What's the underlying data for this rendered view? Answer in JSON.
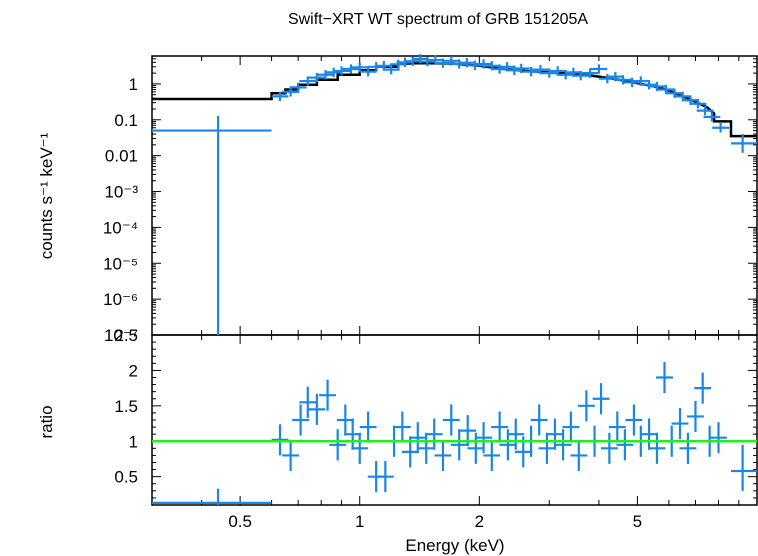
{
  "chart_data": [
    {
      "type": "scatter",
      "title": "Swift−XRT WT spectrum of GRB 151205A",
      "xlabel": "",
      "ylabel": "counts s⁻¹ keV⁻¹",
      "x_scale": "log",
      "y_scale": "log",
      "xlim": [
        0.3,
        10
      ],
      "ylim": [
        1e-07,
        6
      ],
      "ytick_labels": [
        "1",
        "0.1",
        "0.01",
        "10⁻³",
        "10⁻⁴",
        "10⁻⁵",
        "10⁻⁶",
        "10⁻⁷"
      ],
      "data_color": "#1a86e8",
      "model_color": "#000000",
      "series": [
        {
          "points": [
            {
              "x": 0.44,
              "xlo": 0.3,
              "xhi": 0.6,
              "y": 0.05,
              "ylo": 1e-07,
              "yhi": 0.13
            },
            {
              "x": 0.63,
              "y": 0.45
            },
            {
              "x": 0.67,
              "y": 0.6
            },
            {
              "x": 0.7,
              "y": 0.8
            },
            {
              "x": 0.74,
              "y": 1.2
            },
            {
              "x": 0.78,
              "y": 1.5
            },
            {
              "x": 0.82,
              "y": 1.8
            },
            {
              "x": 0.86,
              "y": 2.1
            },
            {
              "x": 0.9,
              "y": 2.3
            },
            {
              "x": 0.95,
              "y": 2.6
            },
            {
              "x": 1.0,
              "y": 2.9
            },
            {
              "x": 1.05,
              "y": 2.2
            },
            {
              "x": 1.1,
              "y": 3.0
            },
            {
              "x": 1.15,
              "y": 3.2
            },
            {
              "x": 1.2,
              "y": 2.5
            },
            {
              "x": 1.25,
              "y": 3.5
            },
            {
              "x": 1.3,
              "y": 4.0
            },
            {
              "x": 1.36,
              "y": 4.3
            },
            {
              "x": 1.42,
              "y": 5.0
            },
            {
              "x": 1.48,
              "y": 4.2
            },
            {
              "x": 1.55,
              "y": 4.6
            },
            {
              "x": 1.62,
              "y": 3.8
            },
            {
              "x": 1.7,
              "y": 4.4
            },
            {
              "x": 1.78,
              "y": 3.6
            },
            {
              "x": 1.86,
              "y": 3.9
            },
            {
              "x": 1.95,
              "y": 3.3
            },
            {
              "x": 2.05,
              "y": 3.6
            },
            {
              "x": 2.15,
              "y": 3.2
            },
            {
              "x": 2.25,
              "y": 2.6
            },
            {
              "x": 2.35,
              "y": 3.0
            },
            {
              "x": 2.45,
              "y": 2.4
            },
            {
              "x": 2.55,
              "y": 2.7
            },
            {
              "x": 2.7,
              "y": 2.2
            },
            {
              "x": 2.85,
              "y": 2.5
            },
            {
              "x": 3.0,
              "y": 2.0
            },
            {
              "x": 3.15,
              "y": 2.3
            },
            {
              "x": 3.3,
              "y": 1.8
            },
            {
              "x": 3.45,
              "y": 2.1
            },
            {
              "x": 3.6,
              "y": 1.7
            },
            {
              "x": 3.8,
              "y": 2.0
            },
            {
              "x": 4.0,
              "y": 2.6
            },
            {
              "x": 4.2,
              "y": 1.4
            },
            {
              "x": 4.4,
              "y": 1.6
            },
            {
              "x": 4.6,
              "y": 1.3
            },
            {
              "x": 4.85,
              "y": 1.1
            },
            {
              "x": 5.1,
              "y": 1.2
            },
            {
              "x": 5.35,
              "y": 0.95
            },
            {
              "x": 5.6,
              "y": 0.85
            },
            {
              "x": 5.9,
              "y": 0.7
            },
            {
              "x": 6.2,
              "y": 0.55
            },
            {
              "x": 6.5,
              "y": 0.45
            },
            {
              "x": 6.8,
              "y": 0.35
            },
            {
              "x": 7.1,
              "y": 0.28
            },
            {
              "x": 7.4,
              "y": 0.18
            },
            {
              "x": 7.7,
              "y": 0.12
            },
            {
              "x": 8.1,
              "y": 0.06
            },
            {
              "x": 9.2,
              "xlo": 8.6,
              "xhi": 10.0,
              "y": 0.022,
              "ylo": 0.012,
              "yhi": 0.04
            }
          ]
        },
        {
          "model_steps": [
            {
              "x": 0.3,
              "y": 0.38
            },
            {
              "x": 0.6,
              "y": 0.38
            },
            {
              "x": 0.6,
              "y": 0.55
            },
            {
              "x": 0.65,
              "y": 0.55
            },
            {
              "x": 0.65,
              "y": 0.7
            },
            {
              "x": 0.7,
              "y": 0.7
            },
            {
              "x": 0.7,
              "y": 0.95
            },
            {
              "x": 0.78,
              "y": 0.95
            },
            {
              "x": 0.78,
              "y": 1.3
            },
            {
              "x": 0.88,
              "y": 1.3
            },
            {
              "x": 0.88,
              "y": 1.8
            },
            {
              "x": 1.0,
              "y": 1.8
            },
            {
              "x": 1.0,
              "y": 2.4
            },
            {
              "x": 1.1,
              "y": 2.4
            },
            {
              "x": 1.1,
              "y": 3.0
            },
            {
              "x": 1.25,
              "y": 3.0
            },
            {
              "x": 1.25,
              "y": 3.6
            },
            {
              "x": 1.4,
              "y": 3.8
            },
            {
              "x": 1.7,
              "y": 3.7
            },
            {
              "x": 2.0,
              "y": 3.2
            },
            {
              "x": 2.3,
              "y": 2.6
            },
            {
              "x": 2.6,
              "y": 2.3
            },
            {
              "x": 3.0,
              "y": 2.1
            },
            {
              "x": 3.5,
              "y": 1.9
            },
            {
              "x": 4.0,
              "y": 1.6
            },
            {
              "x": 4.5,
              "y": 1.3
            },
            {
              "x": 5.0,
              "y": 1.05
            },
            {
              "x": 5.5,
              "y": 0.85
            },
            {
              "x": 6.0,
              "y": 0.65
            },
            {
              "x": 6.5,
              "y": 0.45
            },
            {
              "x": 7.0,
              "y": 0.32
            },
            {
              "x": 7.5,
              "y": 0.22
            },
            {
              "x": 7.8,
              "y": 0.15
            },
            {
              "x": 7.8,
              "y": 0.09
            },
            {
              "x": 8.6,
              "y": 0.09
            },
            {
              "x": 8.6,
              "y": 0.035
            },
            {
              "x": 10.0,
              "y": 0.035
            }
          ]
        }
      ]
    },
    {
      "type": "scatter",
      "xlabel": "Energy (keV)",
      "ylabel": "ratio",
      "x_scale": "log",
      "xlim": [
        0.3,
        10
      ],
      "ylim": [
        0.1,
        2.5
      ],
      "xtick_labels": [
        "0.5",
        "1",
        "2",
        "5"
      ],
      "xtick_values": [
        0.5,
        1,
        2,
        5
      ],
      "ytick_labels": [
        "0.5",
        "1",
        "1.5",
        "2",
        "2.5"
      ],
      "ytick_values": [
        0.5,
        1,
        1.5,
        2,
        2.5
      ],
      "reference_line": {
        "y": 1,
        "color": "#22ee22"
      },
      "data_color": "#1a86e8",
      "points": [
        {
          "x": 0.44,
          "xlo": 0.3,
          "xhi": 0.6,
          "y": 0.13,
          "ylo": 0.1,
          "yhi": 0.33
        },
        {
          "x": 0.63,
          "y": 1.02
        },
        {
          "x": 0.67,
          "y": 0.8
        },
        {
          "x": 0.71,
          "y": 1.3
        },
        {
          "x": 0.74,
          "y": 1.55
        },
        {
          "x": 0.78,
          "y": 1.45
        },
        {
          "x": 0.83,
          "y": 1.65
        },
        {
          "x": 0.88,
          "y": 0.95
        },
        {
          "x": 0.92,
          "y": 1.3
        },
        {
          "x": 0.96,
          "y": 1.1
        },
        {
          "x": 1.0,
          "y": 0.9
        },
        {
          "x": 1.05,
          "y": 1.2
        },
        {
          "x": 1.1,
          "y": 0.5
        },
        {
          "x": 1.16,
          "y": 0.5
        },
        {
          "x": 1.22,
          "y": 1.0
        },
        {
          "x": 1.28,
          "y": 1.2
        },
        {
          "x": 1.34,
          "y": 0.85
        },
        {
          "x": 1.4,
          "y": 1.05
        },
        {
          "x": 1.47,
          "y": 0.9
        },
        {
          "x": 1.54,
          "y": 1.1
        },
        {
          "x": 1.62,
          "y": 0.8
        },
        {
          "x": 1.7,
          "y": 1.3
        },
        {
          "x": 1.78,
          "y": 0.95
        },
        {
          "x": 1.87,
          "y": 1.15
        },
        {
          "x": 1.96,
          "y": 0.9
        },
        {
          "x": 2.05,
          "y": 1.05
        },
        {
          "x": 2.15,
          "y": 0.8
        },
        {
          "x": 2.25,
          "y": 1.2
        },
        {
          "x": 2.36,
          "y": 0.95
        },
        {
          "x": 2.47,
          "y": 1.1
        },
        {
          "x": 2.58,
          "y": 0.85
        },
        {
          "x": 2.7,
          "y": 1.0
        },
        {
          "x": 2.83,
          "y": 1.3
        },
        {
          "x": 2.96,
          "y": 0.9
        },
        {
          "x": 3.1,
          "y": 1.1
        },
        {
          "x": 3.25,
          "y": 0.95
        },
        {
          "x": 3.4,
          "y": 1.2
        },
        {
          "x": 3.56,
          "y": 0.8
        },
        {
          "x": 3.72,
          "y": 1.5
        },
        {
          "x": 3.9,
          "y": 1.0
        },
        {
          "x": 4.05,
          "y": 1.6
        },
        {
          "x": 4.25,
          "y": 0.9
        },
        {
          "x": 4.45,
          "y": 1.2
        },
        {
          "x": 4.65,
          "y": 0.95
        },
        {
          "x": 4.9,
          "y": 1.3
        },
        {
          "x": 5.1,
          "y": 1.0
        },
        {
          "x": 5.35,
          "y": 1.1
        },
        {
          "x": 5.6,
          "y": 0.9
        },
        {
          "x": 5.85,
          "y": 1.9
        },
        {
          "x": 6.1,
          "y": 1.0
        },
        {
          "x": 6.4,
          "y": 1.25
        },
        {
          "x": 6.7,
          "y": 0.9
        },
        {
          "x": 7.0,
          "y": 1.35
        },
        {
          "x": 7.3,
          "y": 1.75
        },
        {
          "x": 7.6,
          "y": 1.0
        },
        {
          "x": 8.0,
          "y": 1.05
        },
        {
          "x": 9.2,
          "xlo": 8.6,
          "xhi": 10.0,
          "y": 0.58,
          "ylo": 0.3,
          "yhi": 0.95
        }
      ]
    }
  ]
}
